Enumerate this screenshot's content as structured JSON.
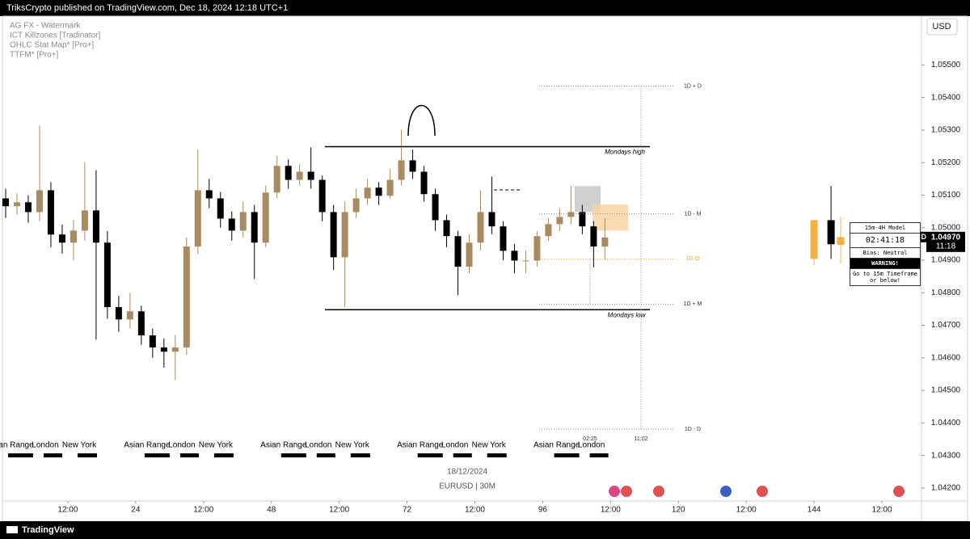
{
  "header": {
    "text": "TriksCrypto published on TradingView.com, Dec 18, 2024 12:18 UTC+1"
  },
  "footer": {
    "brand": "TradingView"
  },
  "chart_data": {
    "type": "candlestick",
    "indicators": [
      "AG FX - Watermark",
      "ICT Killzones [Tradinator]",
      "OHLC Stat Map* [Pro+]",
      "TTFM* [Pro+]"
    ],
    "currency": "USD",
    "date_label": "18/12/2024",
    "interval_label": "EURUSD | 30M",
    "up_color": "#a88b63",
    "down_color": "#000000",
    "x": [
      1,
      3,
      5,
      7,
      9,
      11,
      13,
      15,
      17,
      19,
      21,
      23,
      25,
      27,
      29,
      31,
      33,
      35,
      37,
      39,
      41,
      43,
      45,
      47,
      49,
      51,
      53,
      55,
      57,
      59,
      61,
      63,
      65,
      67,
      69,
      71,
      73,
      75,
      77,
      79,
      81,
      83,
      85,
      87,
      89,
      91,
      93,
      95,
      97,
      99,
      101,
      103,
      105,
      107
    ],
    "open": [
      1.0509,
      1.05066,
      1.05078,
      1.05048,
      1.05115,
      1.04979,
      1.04954,
      1.04991,
      1.05053,
      1.04954,
      1.04756,
      1.04718,
      1.04743,
      1.04669,
      1.04632,
      1.04619,
      1.04632,
      1.04942,
      1.05115,
      1.0509,
      1.05028,
      1.04991,
      1.05048,
      1.04954,
      1.05108,
      1.0519,
      1.05147,
      1.05172,
      1.05147,
      1.05048,
      1.04909,
      1.05048,
      1.0509,
      1.05123,
      1.05098,
      1.05147,
      1.05207,
      1.05172,
      1.05103,
      1.05023,
      1.04974,
      1.0488,
      1.04954,
      1.05048,
      1.05004,
      1.04929,
      1.04899,
      1.04899,
      1.04974,
      1.05011,
      1.05033,
      1.05048,
      1.05004,
      1.04942
    ],
    "high": [
      1.0512,
      1.05105,
      1.051,
      1.05314,
      1.0514,
      1.0501,
      1.05025,
      1.05202,
      1.05177,
      1.0499,
      1.0479,
      1.048,
      1.0476,
      1.0469,
      1.0466,
      1.0467,
      1.0497,
      1.05239,
      1.0515,
      1.0511,
      1.0505,
      1.0508,
      1.0507,
      1.0513,
      1.0522,
      1.0521,
      1.05195,
      1.05247,
      1.0516,
      1.0507,
      1.0508,
      1.0512,
      1.0515,
      1.0514,
      1.0518,
      1.05301,
      1.0524,
      1.0519,
      1.0512,
      1.0504,
      1.0499,
      1.0498,
      1.05115,
      1.05157,
      1.0502,
      1.0495,
      1.0493,
      1.0499,
      1.0503,
      1.0506,
      1.05128,
      1.0507,
      1.0502,
      1.0503
    ],
    "low": [
      1.0503,
      1.0504,
      1.05015,
      1.0502,
      1.0494,
      1.0492,
      1.049,
      1.0496,
      1.04656,
      1.0472,
      1.0468,
      1.0469,
      1.0464,
      1.046,
      1.0457,
      1.04532,
      1.0461,
      1.0492,
      1.0506,
      1.05,
      1.0496,
      1.0497,
      1.04842,
      1.0494,
      1.0509,
      1.0512,
      1.0513,
      1.0512,
      1.0502,
      1.0487,
      1.04756,
      1.0503,
      1.0507,
      1.0507,
      1.0509,
      1.0513,
      1.0515,
      1.0508,
      1.0499,
      1.0494,
      1.04793,
      1.0486,
      1.0493,
      1.0498,
      1.049,
      1.0486,
      1.0486,
      1.0488,
      1.0496,
      1.0499,
      1.0501,
      1.0498,
      1.04878,
      1.049
    ],
    "close": [
      1.05066,
      1.05078,
      1.05048,
      1.05115,
      1.04979,
      1.04954,
      1.04991,
      1.05053,
      1.04954,
      1.04756,
      1.04718,
      1.04743,
      1.04669,
      1.04632,
      1.04619,
      1.04632,
      1.04942,
      1.05115,
      1.0509,
      1.05028,
      1.04991,
      1.05048,
      1.04954,
      1.05108,
      1.0519,
      1.05147,
      1.05172,
      1.05147,
      1.05048,
      1.04909,
      1.05048,
      1.0509,
      1.05123,
      1.05098,
      1.05147,
      1.05207,
      1.05172,
      1.05103,
      1.05023,
      1.04974,
      1.0488,
      1.04954,
      1.05048,
      1.05004,
      1.04929,
      1.04899,
      1.04899,
      1.04974,
      1.05011,
      1.05033,
      1.05048,
      1.05004,
      1.04942,
      1.0497
    ],
    "htf_candles": {
      "x": [
        144,
        147,
        148.7
      ],
      "open": [
        1.04904,
        1.05023,
        1.04947
      ],
      "high": [
        1.05023,
        1.05128,
        1.05033
      ],
      "low": [
        1.04885,
        1.04904,
        1.0489
      ],
      "close": [
        1.05023,
        1.04949,
        1.04971
      ],
      "up_color": "#f5b041",
      "down_color": "#000000"
    },
    "xlim": [
      0,
      163
    ],
    "xticks": [
      {
        "value": 12,
        "label": "12:00"
      },
      24,
      {
        "value": 36,
        "label": "12:00"
      },
      48,
      {
        "value": 60,
        "label": "12:00"
      },
      72,
      {
        "value": 84,
        "label": "12:00"
      },
      96,
      {
        "value": 108,
        "label": "12:00"
      },
      120,
      {
        "value": 132,
        "label": "12:00"
      },
      144,
      {
        "value": 156,
        "label": "12:00"
      }
    ],
    "ylim": [
      1.0416,
      1.0565
    ],
    "yticks": [
      {
        "value": 1.055,
        "label": "1.05500"
      },
      {
        "value": 1.054,
        "label": "1.05400"
      },
      {
        "value": 1.053,
        "label": "1.05300"
      },
      {
        "value": 1.052,
        "label": "1.05200"
      },
      {
        "value": 1.051,
        "label": "1.05100"
      },
      {
        "value": 1.05,
        "label": "1.05000"
      },
      {
        "value": 1.049,
        "label": "1.04900"
      },
      {
        "value": 1.048,
        "label": "1.04800"
      },
      {
        "value": 1.047,
        "label": "1.04700"
      },
      {
        "value": 1.046,
        "label": "1.04600"
      },
      {
        "value": 1.045,
        "label": "1.04500"
      },
      {
        "value": 1.044,
        "label": "1.04400"
      },
      {
        "value": 1.043,
        "label": "1.04300"
      },
      {
        "value": 1.042,
        "label": "1.04200"
      }
    ],
    "last_price": {
      "symbol": "EURUSD",
      "value": 1.0497,
      "label": "1.04970",
      "countdown": "11:18"
    },
    "monday_levels": [
      {
        "label": "Mondays high",
        "value": 1.05249
      },
      {
        "label": "Mondays low",
        "value": 1.04748
      }
    ],
    "daily_levels": [
      {
        "label": "1D + D",
        "value": 1.05435,
        "color": "#888888"
      },
      {
        "label": "1D - M",
        "value": 1.05043,
        "color": "#888888"
      },
      {
        "label": "1D O",
        "value": 1.04904,
        "color": "#f0a030"
      },
      {
        "label": "1D + M",
        "value": 1.04765,
        "color": "#888888"
      },
      {
        "label": "1D - D",
        "value": 1.04381,
        "color": "#888888"
      }
    ],
    "time_labels": [
      "02:25",
      "11:02"
    ],
    "zones": [
      {
        "top": 1.05128,
        "bottom": 1.05048,
        "color": "#c8c8c8"
      },
      {
        "top": 1.05071,
        "bottom": 1.04991,
        "color": "#f9d3a3"
      }
    ],
    "sessions": [
      [
        "Asian Range",
        "London",
        "New York"
      ],
      [
        "Asian Range",
        "London",
        "New York"
      ],
      [
        "Asian Range",
        "London",
        "New York"
      ],
      [
        "Asian Range",
        "London",
        "New York"
      ],
      [
        "Asian Range",
        "London"
      ]
    ],
    "info_box": {
      "title": "15m-4H Model",
      "timer": "02:41:18",
      "bias": "Bias: Neutral",
      "warning": "WARNING!",
      "message": "Go to 15m Timeframe or below!"
    }
  }
}
